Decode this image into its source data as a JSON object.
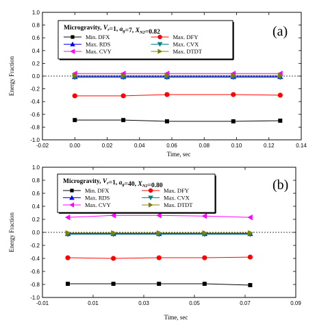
{
  "chart_data": [
    {
      "type": "line",
      "panel_label": "(a)",
      "xlabel": "Time, sec",
      "ylabel": "Energy Fraction",
      "xlim": [
        -0.02,
        0.14
      ],
      "ylim": [
        -1.0,
        1.0
      ],
      "xticks": [
        "-0.02",
        "0.00",
        "0.02",
        "0.04",
        "0.06",
        "0.08",
        "0.10",
        "0.12",
        "0.14"
      ],
      "yticks": [
        "-1.0",
        "-0.8",
        "-0.6",
        "-0.4",
        "-0.2",
        "0.0",
        "0.2",
        "0.4",
        "0.6",
        "0.8",
        "1.0"
      ],
      "legend_title": "Microgravity, V_r=1, a_g=7, X_N2=0.82",
      "legend_placement": "top-left",
      "zero_line": true,
      "grid": false,
      "x": [
        0.0,
        0.03,
        0.057,
        0.098,
        0.127
      ],
      "series": [
        {
          "name": "Min. DFX",
          "marker": "square",
          "color": "#000000",
          "values": [
            -0.69,
            -0.69,
            -0.71,
            -0.71,
            -0.7
          ]
        },
        {
          "name": "Max. DFY",
          "marker": "circle",
          "color": "#ff0000",
          "values": [
            -0.31,
            -0.31,
            -0.29,
            -0.29,
            -0.3
          ]
        },
        {
          "name": "Max. RDS",
          "marker": "triangle-up",
          "color": "#0000ff",
          "values": [
            -0.01,
            -0.01,
            -0.01,
            -0.01,
            -0.01
          ]
        },
        {
          "name": "Max. CVX",
          "marker": "triangle-down",
          "color": "#008080",
          "values": [
            -0.02,
            -0.02,
            -0.02,
            -0.02,
            -0.02
          ]
        },
        {
          "name": "Max. CVY",
          "marker": "triangle-left",
          "color": "#ff00ff",
          "values": [
            0.04,
            0.04,
            0.04,
            0.04,
            0.04
          ]
        },
        {
          "name": "Max. DTDT",
          "marker": "triangle-right",
          "color": "#808000",
          "values": [
            0.01,
            0.01,
            0.01,
            0.01,
            0.01
          ]
        }
      ]
    },
    {
      "type": "line",
      "panel_label": "(b)",
      "xlabel": "Time, sec",
      "ylabel": "Energy Fraction",
      "xlim": [
        -0.01,
        0.09
      ],
      "ylim": [
        -1.0,
        1.0
      ],
      "xticks": [
        "-0.01",
        "0.01",
        "0.03",
        "0.05",
        "0.07",
        "0.09"
      ],
      "yticks": [
        "-1.0",
        "-0.8",
        "-0.6",
        "-0.4",
        "-0.2",
        "0.0",
        "0.2",
        "0.4",
        "0.6",
        "0.8",
        "1.0"
      ],
      "legend_title": "Microgravity, V_r=1, a_g=40, X_N2=0.80",
      "legend_placement": "top-left",
      "zero_line": true,
      "grid": false,
      "x": [
        0.0,
        0.018,
        0.036,
        0.054,
        0.072
      ],
      "series": [
        {
          "name": "Min. DFX",
          "marker": "square",
          "color": "#000000",
          "values": [
            -0.79,
            -0.79,
            -0.79,
            -0.79,
            -0.81
          ]
        },
        {
          "name": "Max. DFY",
          "marker": "circle",
          "color": "#ff0000",
          "values": [
            -0.39,
            -0.4,
            -0.39,
            -0.39,
            -0.38
          ]
        },
        {
          "name": "Max. RDS",
          "marker": "triangle-up",
          "color": "#0000ff",
          "values": [
            -0.02,
            -0.02,
            -0.02,
            -0.02,
            -0.02
          ]
        },
        {
          "name": "Max. CVX",
          "marker": "triangle-down",
          "color": "#008080",
          "values": [
            -0.03,
            -0.03,
            -0.03,
            -0.03,
            -0.03
          ]
        },
        {
          "name": "Max. CVY",
          "marker": "triangle-left",
          "color": "#ff00ff",
          "values": [
            0.23,
            0.26,
            0.26,
            0.25,
            0.23
          ]
        },
        {
          "name": "Max. DTDT",
          "marker": "triangle-right",
          "color": "#808000",
          "values": [
            -0.01,
            -0.01,
            -0.01,
            -0.01,
            -0.01
          ]
        }
      ]
    }
  ]
}
